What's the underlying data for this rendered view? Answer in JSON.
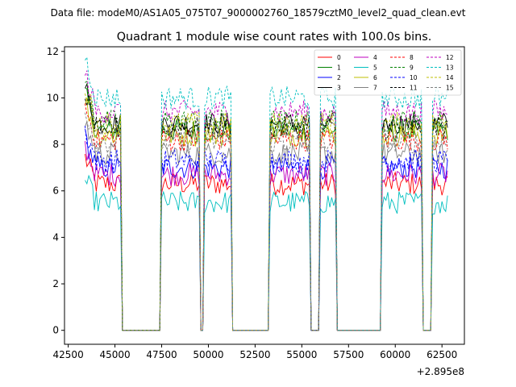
{
  "chart_data": {
    "type": "line",
    "suptitle": "Data file: modeM0/AS1A05_075T07_9000002760_18579cztM0_level2_quad_clean.evt",
    "title": "Quadrant 1 module wise count rates with 100.0s bins.",
    "xlabel": "",
    "ylabel": "",
    "x_offset_label": "+2.895e8",
    "xlim": [
      42300,
      63700
    ],
    "ylim": [
      -0.6,
      12.2
    ],
    "xticks": [
      42500,
      45000,
      47500,
      50000,
      52500,
      55000,
      57500,
      60000,
      62500
    ],
    "yticks": [
      0,
      2,
      4,
      6,
      8,
      10,
      12
    ],
    "x_range": [
      43400,
      62800
    ],
    "bin": 100,
    "segments": [
      [
        43400,
        45300
      ],
      [
        47500,
        49550
      ],
      [
        49800,
        51200
      ],
      [
        53300,
        55450
      ],
      [
        55950,
        56800
      ],
      [
        59300,
        61450
      ],
      [
        61950,
        62800
      ]
    ],
    "series": [
      {
        "name": "0",
        "color": "#ff0000",
        "dash": "solid",
        "level": 6.3
      },
      {
        "name": "1",
        "color": "#008000",
        "dash": "solid",
        "level": 8.6
      },
      {
        "name": "2",
        "color": "#0000ff",
        "dash": "solid",
        "level": 7.0
      },
      {
        "name": "3",
        "color": "#000000",
        "dash": "solid",
        "level": 8.9
      },
      {
        "name": "4",
        "color": "#bf00bf",
        "dash": "solid",
        "level": 6.7
      },
      {
        "name": "5",
        "color": "#00bfbf",
        "dash": "solid",
        "level": 5.5
      },
      {
        "name": "6",
        "color": "#bfbf00",
        "dash": "solid",
        "level": 8.4
      },
      {
        "name": "7",
        "color": "#808080",
        "dash": "solid",
        "level": 7.6
      },
      {
        "name": "8",
        "color": "#ff0000",
        "dash": "dashed",
        "level": 8.2
      },
      {
        "name": "9",
        "color": "#008000",
        "dash": "dashed",
        "level": 9.0
      },
      {
        "name": "10",
        "color": "#0000ff",
        "dash": "dashed",
        "level": 7.3
      },
      {
        "name": "11",
        "color": "#000000",
        "dash": "dashed",
        "level": 8.7
      },
      {
        "name": "12",
        "color": "#bf00bf",
        "dash": "dashed",
        "level": 9.4
      },
      {
        "name": "13",
        "color": "#00bfbf",
        "dash": "dashed",
        "level": 10.0
      },
      {
        "name": "14",
        "color": "#bfbf00",
        "dash": "dashed",
        "level": 8.9
      },
      {
        "name": "15",
        "color": "#808080",
        "dash": "dashed",
        "level": 8.1
      }
    ],
    "legend_position": "upper-right",
    "legend_columns": 4,
    "grid": false
  }
}
